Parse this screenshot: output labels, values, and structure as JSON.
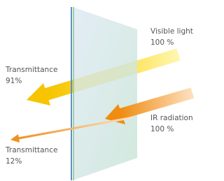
{
  "labels": [
    {
      "title": "Visible light",
      "value": "100 %"
    },
    {
      "title": "Transmittance",
      "value": "91%"
    },
    {
      "title": "IR radiation",
      "value": "100 %"
    },
    {
      "title": "Transmittance",
      "value": "12%"
    }
  ]
}
